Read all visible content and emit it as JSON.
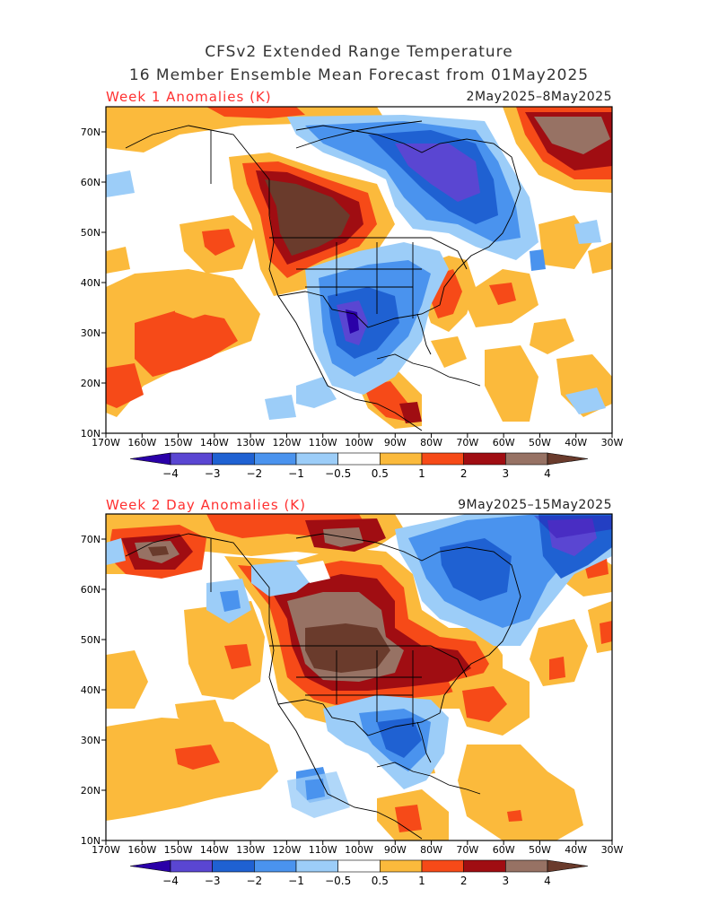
{
  "header": {
    "title_line1": "CFSv2 Extended Range Temperature",
    "title_line2": "16 Member Ensemble Mean Forecast from 01May2025"
  },
  "panels": [
    {
      "label": "Week 1 Anomalies (K)",
      "dates": "2May2025–8May2025"
    },
    {
      "label": "Week 2 Day Anomalies (K)",
      "dates": "9May2025–15May2025"
    }
  ],
  "axes": {
    "lat_labels": [
      "70N",
      "60N",
      "50N",
      "40N",
      "30N",
      "20N",
      "10N"
    ],
    "lon_labels": [
      "170W",
      "160W",
      "150W",
      "140W",
      "130W",
      "120W",
      "110W",
      "100W",
      "90W",
      "80W",
      "70W",
      "60W",
      "50W",
      "40W",
      "30W"
    ]
  },
  "colorbar": {
    "tick_labels": [
      "−4",
      "−3",
      "−2",
      "−1",
      "−0.5",
      "0.5",
      "1",
      "2",
      "3",
      "4"
    ],
    "colors": [
      "#2a00a8",
      "#5a46d2",
      "#1f61d2",
      "#4a93ee",
      "#9ccdf8",
      "#ffffff",
      "#fbba3c",
      "#f64a18",
      "#a00d12",
      "#977264",
      "#6a3b2c"
    ]
  }
}
